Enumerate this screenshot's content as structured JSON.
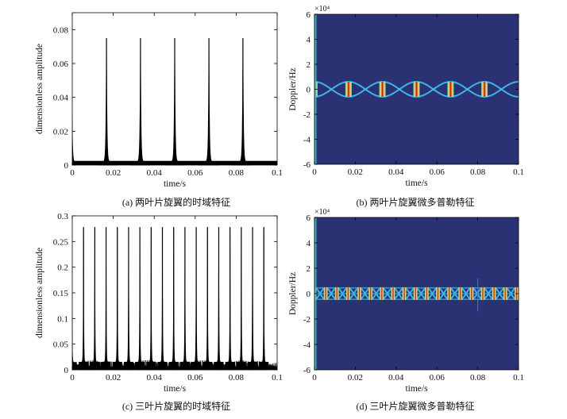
{
  "captions": {
    "a": "(a) 两叶片旋翼的时域特征",
    "b": "(b) 两叶片旋翼微多普勒特征",
    "c": "(c) 三叶片旋翼的时域特征",
    "d": "(d) 三叶片旋翼微多普勒特征"
  },
  "chart_data": [
    {
      "id": "a",
      "type": "line",
      "title": "",
      "xlabel": "time/s",
      "ylabel": "dimensionless amplitude",
      "xlim": [
        0,
        0.1
      ],
      "ylim": [
        0,
        0.09
      ],
      "xticks": [
        0,
        0.02,
        0.04,
        0.06,
        0.08,
        0.1
      ],
      "xtick_labels": [
        "0",
        "0.02",
        "0.04",
        "0.06",
        "0.08",
        "0.1"
      ],
      "yticks": [
        0,
        0.02,
        0.04,
        0.06,
        0.08
      ],
      "ytick_labels": [
        "0",
        "0.02",
        "0.04",
        "0.06",
        "0.08"
      ],
      "series": [
        {
          "color": "#000000",
          "description_of_shape": "periodic spikes",
          "spike_times": [
            0.0167,
            0.0333,
            0.05,
            0.0667,
            0.0833
          ],
          "spike_peak": 0.075,
          "baseline": 0.002
        }
      ],
      "grid": false
    },
    {
      "id": "b",
      "type": "heatmap",
      "title": "",
      "xlabel": "time/s",
      "ylabel": "Doppler/Hz",
      "y_scale_label": "×10⁴",
      "xlim": [
        0,
        0.1
      ],
      "ylim": [
        -6,
        6
      ],
      "xticks": [
        0,
        0.02,
        0.04,
        0.06,
        0.08,
        0.1
      ],
      "xtick_labels": [
        "0",
        "0.02",
        "0.04",
        "0.06",
        "0.08",
        "0.1"
      ],
      "yticks": [
        -6,
        -4,
        -2,
        0,
        2,
        4,
        6
      ],
      "ytick_labels": [
        "-6",
        "-4",
        "-2",
        "0",
        "2",
        "4",
        "6"
      ],
      "background_color": "#2b3274",
      "flash_times": [
        0.0,
        0.0167,
        0.0333,
        0.05,
        0.0667,
        0.0833
      ],
      "sinusoid_amplitude": 0.6,
      "blades": 2,
      "rotation_period": 0.0333
    },
    {
      "id": "c",
      "type": "line",
      "title": "",
      "xlabel": "time/s",
      "ylabel": "dimensionless amplitude",
      "xlim": [
        0,
        0.1
      ],
      "ylim": [
        0,
        0.3
      ],
      "xticks": [
        0,
        0.02,
        0.04,
        0.06,
        0.08,
        0.1
      ],
      "xtick_labels": [
        "0",
        "0.02",
        "0.04",
        "0.06",
        "0.08",
        "0.1"
      ],
      "yticks": [
        0,
        0.05,
        0.1,
        0.15,
        0.2,
        0.25,
        0.3
      ],
      "ytick_labels": [
        "0",
        "0.05",
        "0.1",
        "0.15",
        "0.2",
        "0.25",
        "0.3"
      ],
      "series": [
        {
          "color": "#000000",
          "description_of_shape": "periodic spikes over noisy baseline",
          "spike_period": 0.0055,
          "first_spike": 0.0055,
          "spike_peak": 0.278,
          "baseline": 0.015
        }
      ],
      "grid": false
    },
    {
      "id": "d",
      "type": "heatmap",
      "title": "",
      "xlabel": "time/s",
      "ylabel": "Doppler/Hz",
      "y_scale_label": "×10⁴",
      "xlim": [
        0,
        0.1
      ],
      "ylim": [
        -6,
        6
      ],
      "xticks": [
        0,
        0.02,
        0.04,
        0.06,
        0.08,
        0.1
      ],
      "xtick_labels": [
        "0",
        "0.02",
        "0.04",
        "0.06",
        "0.08",
        "0.1"
      ],
      "yticks": [
        -6,
        -4,
        -2,
        0,
        2,
        4,
        6
      ],
      "ytick_labels": [
        "-6",
        "-4",
        "-2",
        "0",
        "2",
        "4",
        "6"
      ],
      "background_color": "#2b3274",
      "flash_period": 0.0055,
      "sinusoid_amplitude": 0.45,
      "blades": 3
    }
  ]
}
